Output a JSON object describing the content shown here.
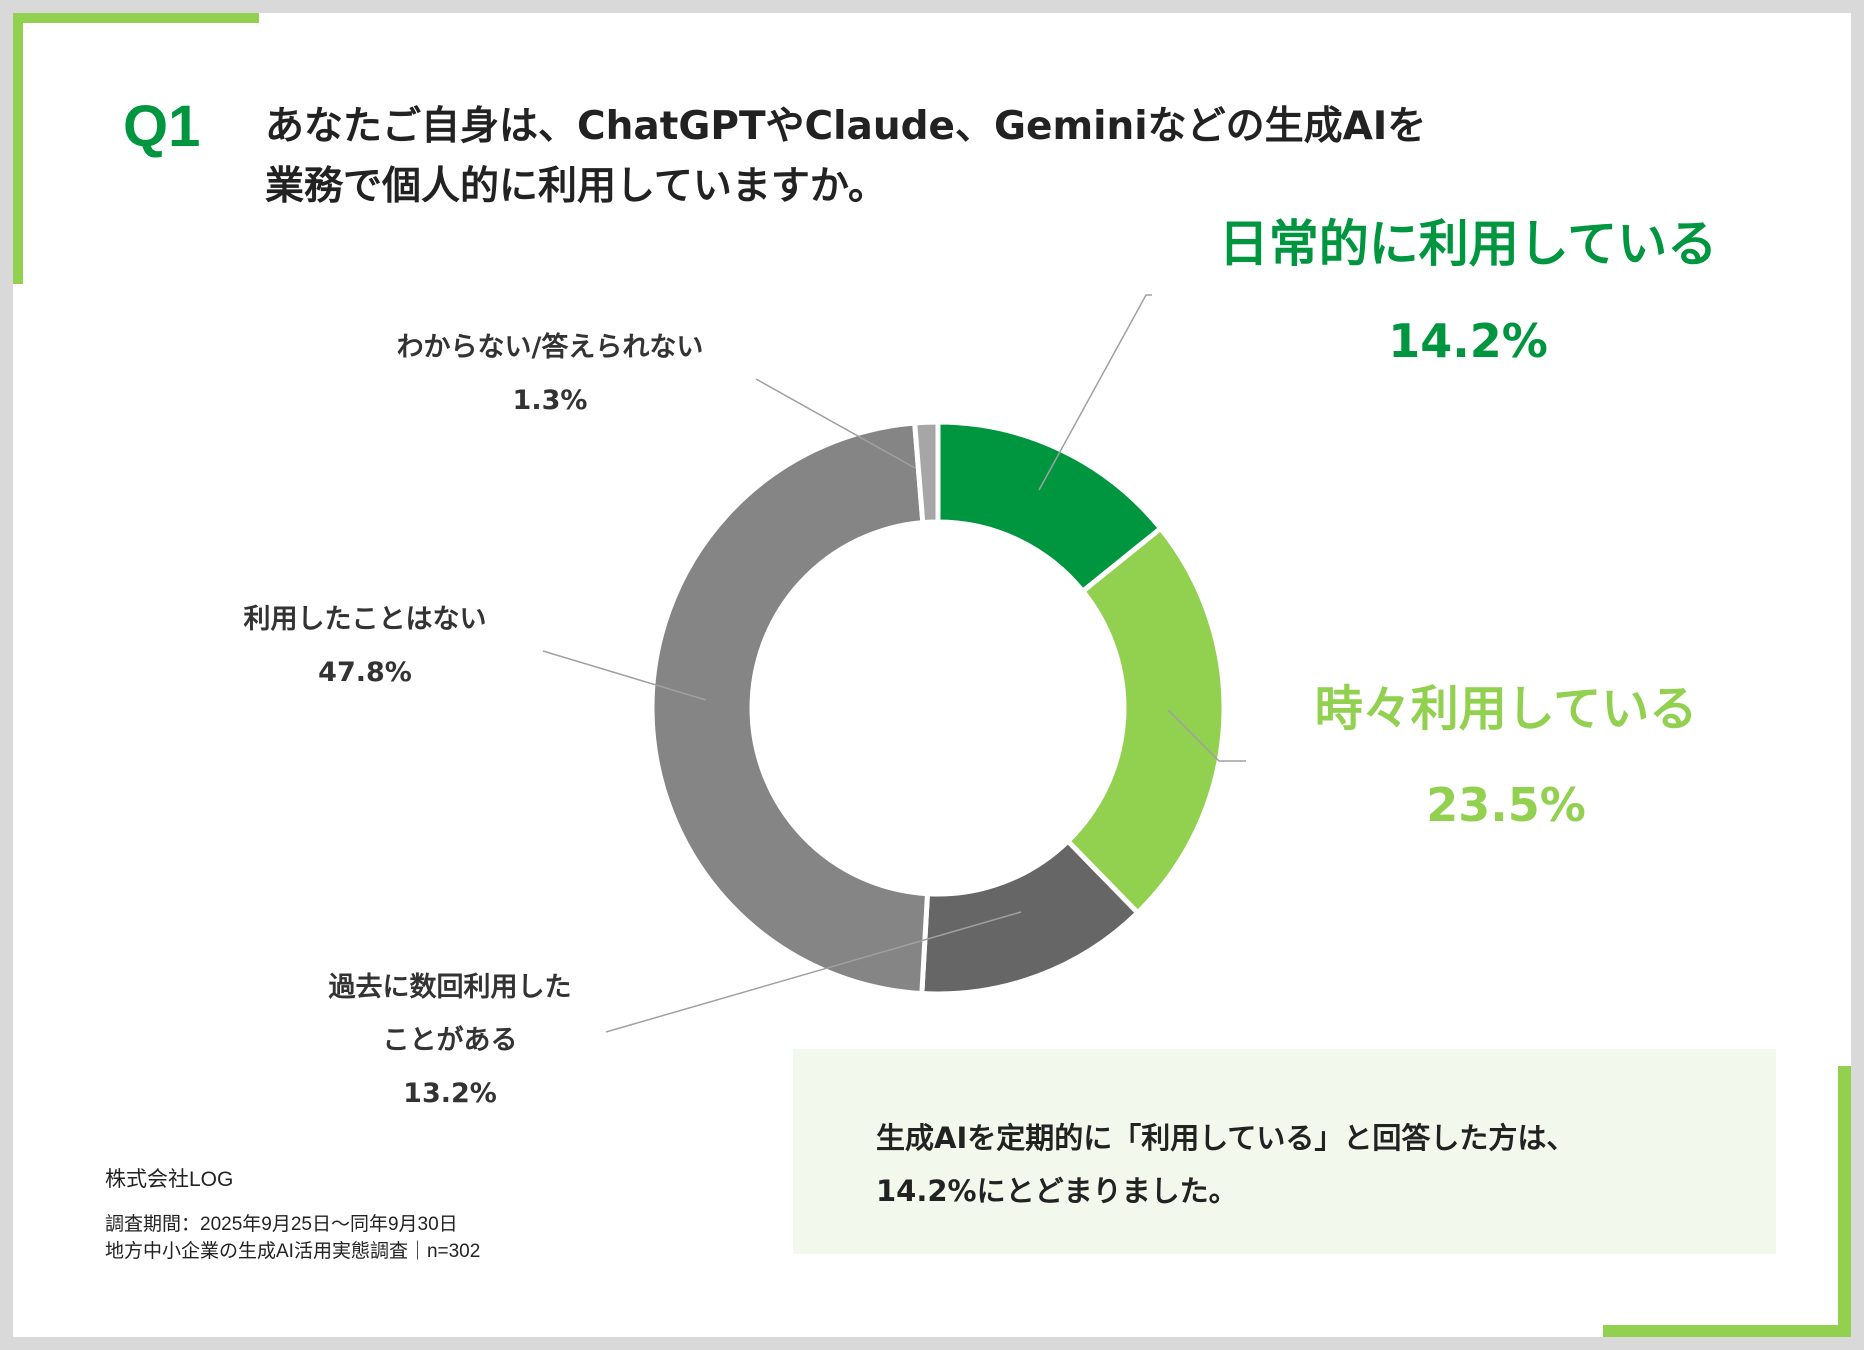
{
  "question": {
    "number": "Q1",
    "line1": "あなたご自身は、ChatGPTやClaude、Geminiなどの生成AIを",
    "line2": "業務で個人的に利用していますか。"
  },
  "chart_data": {
    "type": "pie",
    "variant": "donut",
    "unit": "%",
    "slices": [
      {
        "label": "日常的に利用している",
        "value": 14.2,
        "value_text": "14.2%",
        "color": "#009640",
        "label_color": "#009640",
        "label_size": "large"
      },
      {
        "label": "時々利用している",
        "value": 23.5,
        "value_text": "23.5%",
        "color": "#92d050",
        "label_color": "#92d050",
        "label_size": "large"
      },
      {
        "label_lines": [
          "過去に数回利用した",
          "ことがある"
        ],
        "value": 13.2,
        "value_text": "13.2%",
        "color": "#666666",
        "label_color": "#333333",
        "label_size": "small"
      },
      {
        "label": "利用したことはない",
        "value": 47.8,
        "value_text": "47.8%",
        "color": "#858585",
        "label_color": "#333333",
        "label_size": "small"
      },
      {
        "label": "わからない/答えられない",
        "value": 1.3,
        "value_text": "1.3%",
        "color": "#a6a6a6",
        "label_color": "#333333",
        "label_size": "small"
      }
    ],
    "start_angle": "12 o'clock",
    "direction": "clockwise",
    "legend": "none"
  },
  "summary": {
    "line1": "生成AIを定期的に「利用している」と回答した方は、",
    "line2": "14.2%にとどまりました。"
  },
  "footer": {
    "company": "株式会社LOG",
    "period": "調査期間：2025年9月25日〜同年9月30日",
    "survey": "地方中小企業の生成AI活用実態調査｜n=302"
  },
  "colors": {
    "accent_green": "#92d050",
    "dark_green": "#009640",
    "background_frame": "#d9d9d9"
  }
}
